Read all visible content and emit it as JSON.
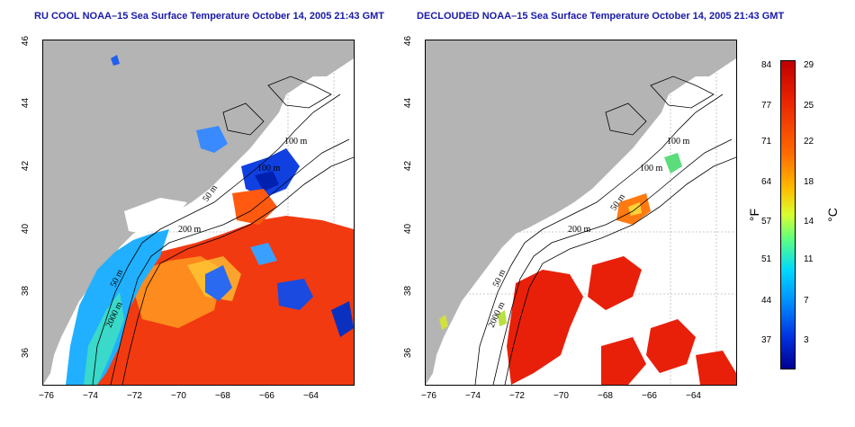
{
  "maps": [
    {
      "title": "RU COOL NOAA–15 Sea Surface Temperature October 14, 2005 21:43 GMT",
      "contour_labels": [
        "100 m",
        "100 m",
        "50 m",
        "200 m",
        "50 m",
        "2000 m"
      ]
    },
    {
      "title": "DECLOUDED NOAA–15 Sea Surface Temperature October 14, 2005 21:43 GMT",
      "contour_labels": [
        "100 m",
        "100 m",
        "50 m",
        "200 m",
        "50 m",
        "2000 m"
      ]
    }
  ],
  "axes": {
    "lon_ticks": [
      "−76",
      "−74",
      "−72",
      "−70",
      "−68",
      "−66",
      "−64"
    ],
    "lat_ticks": [
      "46",
      "44",
      "42",
      "40",
      "38",
      "36"
    ]
  },
  "colorbar": {
    "f_label": "°F",
    "c_label": "°C",
    "f_ticks": [
      "84",
      "77",
      "71",
      "64",
      "57",
      "51",
      "44",
      "37"
    ],
    "c_ticks": [
      "29",
      "25",
      "22",
      "18",
      "14",
      "11",
      "7",
      "3"
    ],
    "colors": [
      "#c00000",
      "#ff6a00",
      "#ffc000",
      "#5cff80",
      "#00d8ff",
      "#0030e0",
      "#000090"
    ]
  }
}
